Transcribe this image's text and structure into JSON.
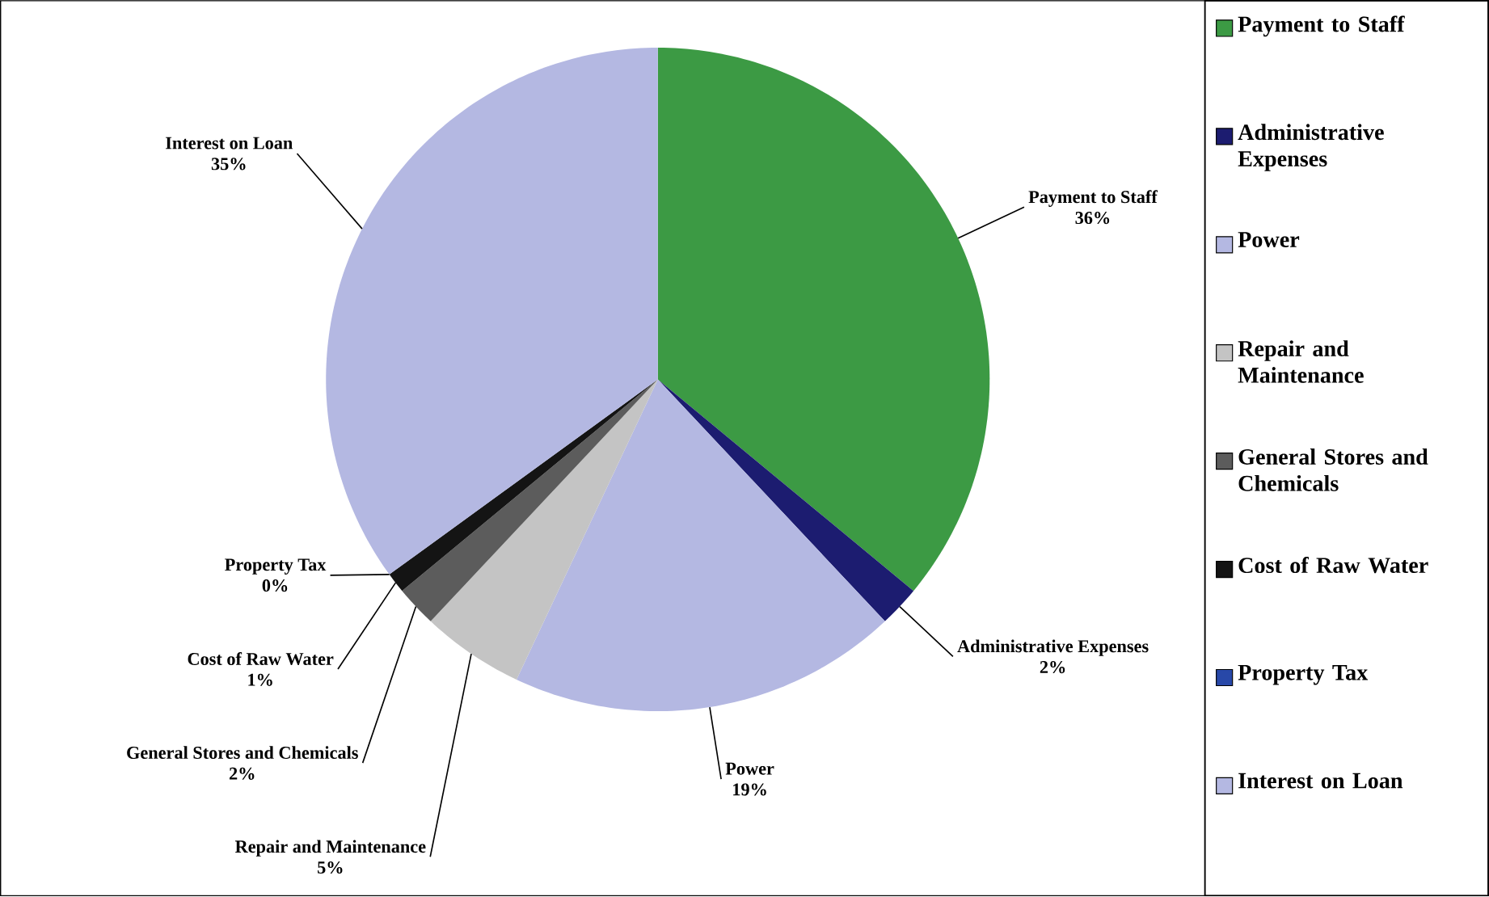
{
  "chart_data": {
    "type": "pie",
    "categories": [
      "Payment to Staff",
      "Administrative Expenses",
      "Power",
      "Repair and Maintenance",
      "General Stores and Chemicals",
      "Cost of Raw Water",
      "Property Tax",
      "Interest on Loan"
    ],
    "values": [
      36,
      2,
      19,
      5,
      2,
      1,
      0,
      35
    ],
    "value_labels": [
      "36%",
      "2%",
      "19%",
      "5%",
      "2%",
      "1%",
      "0%",
      "35%"
    ],
    "colors": [
      "#3c9a44",
      "#1c1c70",
      "#b4b8e2",
      "#c4c4c4",
      "#5c5c5c",
      "#141414",
      "#2848a8",
      "#b4b8e2"
    ],
    "legend": "right"
  }
}
